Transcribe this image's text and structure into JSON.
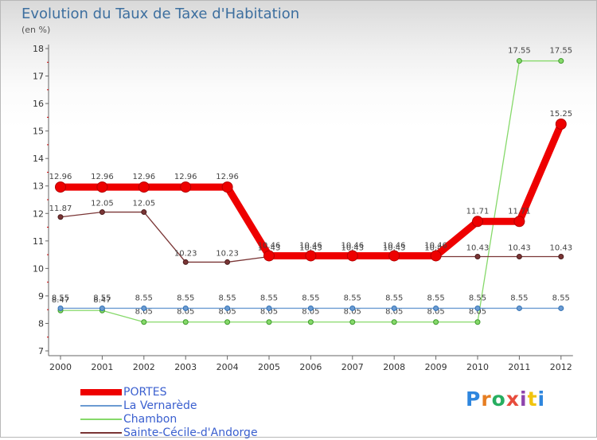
{
  "title": "Evolution du Taux de Taxe d'Habitation",
  "subtitle": "(en %)",
  "logo": {
    "letters": [
      {
        "ch": "P",
        "color": "#2e86de"
      },
      {
        "ch": "r",
        "color": "#e67e22"
      },
      {
        "ch": "o",
        "color": "#27ae60"
      },
      {
        "ch": "x",
        "color": "#e74c3c"
      },
      {
        "ch": "i",
        "color": "#8e44ad"
      },
      {
        "ch": "t",
        "color": "#f1c40f"
      },
      {
        "ch": "i",
        "color": "#2e86de"
      }
    ]
  },
  "chart_data": {
    "type": "line",
    "x": [
      "2000",
      "2001",
      "2002",
      "2003",
      "2004",
      "2005",
      "2006",
      "2007",
      "2008",
      "2009",
      "2010",
      "2011",
      "2012"
    ],
    "ylim": [
      7,
      18
    ],
    "yticks": [
      "7",
      "8",
      "9",
      "10",
      "11",
      "12",
      "13",
      "14",
      "15",
      "16",
      "17",
      "18"
    ],
    "grid": false,
    "legend_position": "bottom-left",
    "series": [
      {
        "name": "PORTES",
        "color": "#ee0000",
        "values": [
          12.96,
          12.96,
          12.96,
          12.96,
          12.96,
          10.46,
          10.46,
          10.46,
          10.46,
          10.46,
          11.71,
          11.71,
          15.25
        ],
        "labels": [
          "12.96",
          "12.96",
          "12.96",
          "12.96",
          "12.96",
          "10.46",
          "10.46",
          "10.46",
          "10.46",
          "10.46",
          "11.71",
          "11.71",
          "15.25"
        ]
      },
      {
        "name": "La Vernarède",
        "color": "#6b9bd2",
        "values": [
          8.55,
          8.55,
          8.55,
          8.55,
          8.55,
          8.55,
          8.55,
          8.55,
          8.55,
          8.55,
          8.55,
          8.55,
          8.55
        ],
        "labels": [
          "8.55",
          "8.55",
          "8.55",
          "8.55",
          "8.55",
          "8.55",
          "8.55",
          "8.55",
          "8.55",
          "8.55",
          "8.55",
          "8.55",
          "8.55"
        ]
      },
      {
        "name": "Chambon",
        "color": "#86d96a",
        "values": [
          8.47,
          8.47,
          8.05,
          8.05,
          8.05,
          8.05,
          8.05,
          8.05,
          8.05,
          8.05,
          8.05,
          17.55,
          17.55
        ],
        "labels": [
          "8.47",
          "8.47",
          "8.05",
          "8.05",
          "8.05",
          "8.05",
          "8.05",
          "8.05",
          "8.05",
          "8.05",
          "8.05",
          "17.55",
          "17.55"
        ]
      },
      {
        "name": "Sainte-Cécile-d'Andorge",
        "color": "#7a3535",
        "values": [
          11.87,
          12.05,
          12.05,
          10.23,
          10.23,
          10.43,
          10.43,
          10.43,
          10.43,
          10.43,
          10.43,
          10.43,
          10.43
        ],
        "labels": [
          "11.87",
          "12.05",
          "12.05",
          "10.23",
          "10.23",
          "10.43",
          "10.43",
          "10.43",
          "10.43",
          "10.43",
          "10.43",
          "10.43",
          "10.43"
        ]
      }
    ]
  }
}
